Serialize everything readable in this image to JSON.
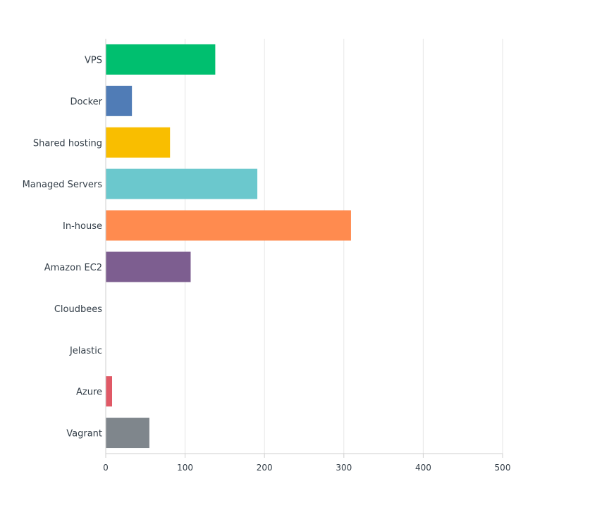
{
  "chart_data": {
    "type": "bar",
    "orientation": "horizontal",
    "categories": [
      "VPS",
      "Docker",
      "Shared hosting",
      "Managed Servers",
      "In-house",
      "Amazon EC2",
      "Cloudbees",
      "Jelastic",
      "Azure",
      "Vagrant"
    ],
    "values": [
      138,
      33,
      81,
      191,
      309,
      107,
      0,
      0,
      8,
      55
    ],
    "colors": [
      "#00bf6f",
      "#507cb6",
      "#f9be00",
      "#6bc8cd",
      "#ff8b4f",
      "#7d5e90",
      "#d25f90",
      "#c8d3cc",
      "#e05966",
      "#7f868c"
    ],
    "xlim": [
      0,
      500
    ],
    "xticks": [
      0,
      100,
      200,
      300,
      400,
      500
    ],
    "xtick_labels": [
      "0",
      "100",
      "200",
      "300",
      "400",
      "500"
    ],
    "grid": "vertical"
  }
}
